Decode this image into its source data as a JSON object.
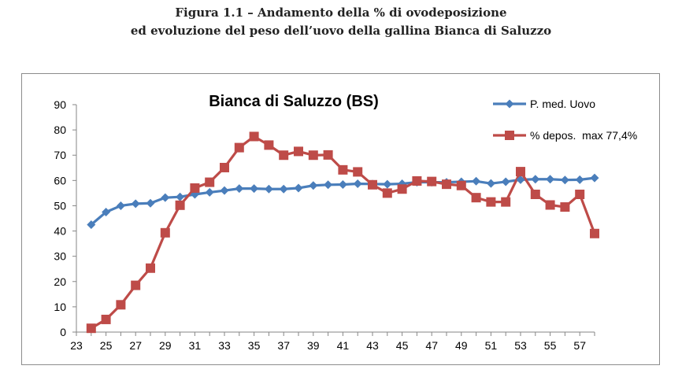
{
  "figure": {
    "title_line1": "Figura 1.1 – Andamento della % di ovodeposizione",
    "title_line2": "ed evoluzione del peso dell’uovo della gallina Bianca di Saluzzo"
  },
  "chart_data": {
    "type": "line",
    "title": "Bianca di Saluzzo (BS)",
    "xlabel": "",
    "ylabel": "",
    "xlim": [
      23,
      58
    ],
    "ylim": [
      0,
      90
    ],
    "x_ticks": [
      23,
      25,
      27,
      29,
      31,
      33,
      35,
      37,
      39,
      41,
      43,
      45,
      47,
      49,
      51,
      53,
      55,
      57
    ],
    "y_ticks": [
      0,
      10,
      20,
      30,
      40,
      50,
      60,
      70,
      80,
      90
    ],
    "grid": "none",
    "legend_position": "top-right",
    "x": [
      24,
      25,
      26,
      27,
      28,
      29,
      30,
      31,
      32,
      33,
      34,
      35,
      36,
      37,
      38,
      39,
      40,
      41,
      42,
      43,
      44,
      45,
      46,
      47,
      48,
      49,
      50,
      51,
      52,
      53,
      54,
      55,
      56,
      57,
      58
    ],
    "series": [
      {
        "name": "P. med. Uovo",
        "color": "#4a7ebb",
        "marker": "diamond",
        "values": [
          42.5,
          47.5,
          50,
          50.8,
          51,
          53.2,
          53.5,
          54.5,
          55.3,
          56,
          56.8,
          56.8,
          56.6,
          56.6,
          57,
          58,
          58.3,
          58.4,
          58.7,
          58.6,
          58.5,
          58.7,
          59.3,
          59.3,
          59.3,
          59.5,
          59.7,
          58.8,
          59.5,
          60.3,
          60.5,
          60.5,
          60.2,
          60.3,
          61
        ]
      },
      {
        "name": "% depos.  max 77,4%",
        "color": "#be4b48",
        "marker": "square",
        "values": [
          1.5,
          5,
          10.8,
          18.5,
          25.3,
          39.3,
          50.2,
          57,
          59.3,
          65.1,
          73,
          77.4,
          74,
          70,
          71.5,
          70,
          70.1,
          64.2,
          63.4,
          58.3,
          55,
          56.6,
          59.8,
          59.6,
          58.5,
          58,
          53.2,
          51.5,
          51.5,
          63.5,
          54.5,
          50.3,
          49.5,
          54.5,
          39
        ]
      }
    ]
  }
}
